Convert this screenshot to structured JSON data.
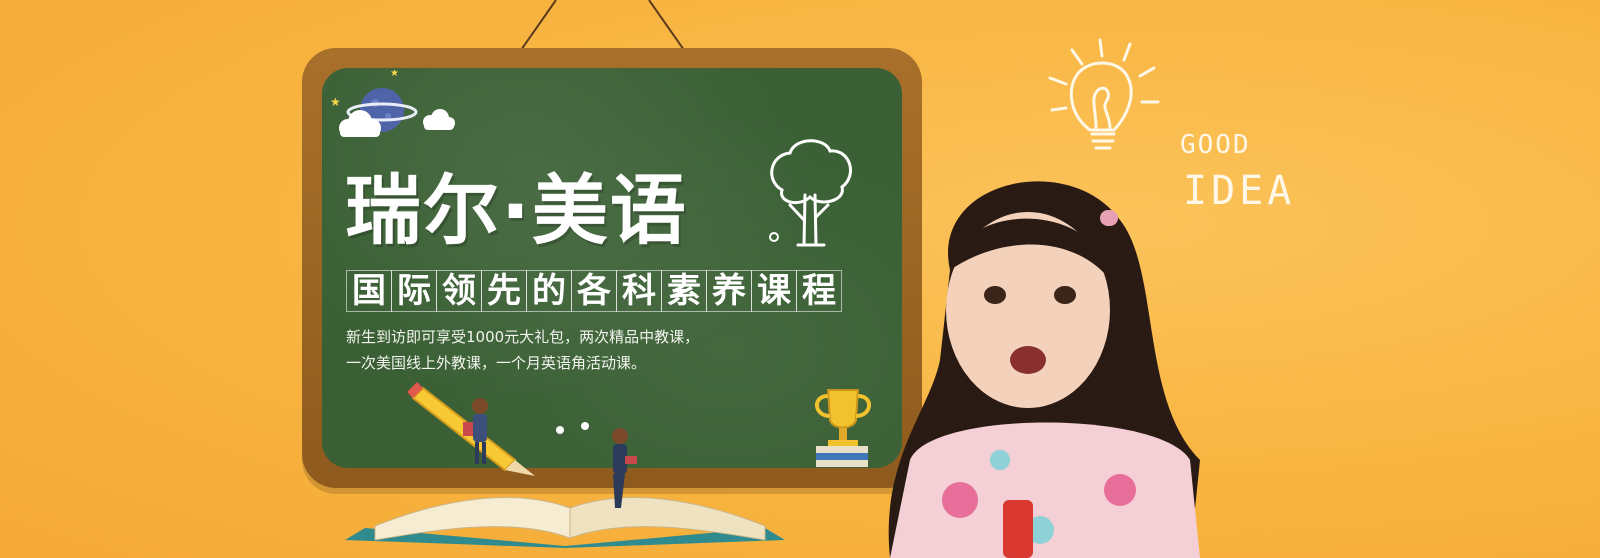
{
  "banner": {
    "brand_title": "瑞尔·美语",
    "subtitle_chars": [
      "国",
      "际",
      "领",
      "先",
      "的",
      "各",
      "科",
      "素",
      "养",
      "课",
      "程"
    ],
    "description_line1": "新生到访即可享受1000元大礼包，两次精品中教课，",
    "description_line2": "一次美国线上外教课，一个月英语角活动课。",
    "chalk_good": "GOOD",
    "chalk_idea": "IDEA"
  },
  "colors": {
    "background": "#f9b746",
    "board_frame": "#a8702a",
    "board_surface": "#3a5f34",
    "text": "#ffffff"
  },
  "icons": [
    "planet-icon",
    "cloud-icon",
    "star-icon",
    "tree-icon",
    "trophy-icon",
    "pencil-icon",
    "open-book-icon",
    "light-bulb-icon"
  ]
}
